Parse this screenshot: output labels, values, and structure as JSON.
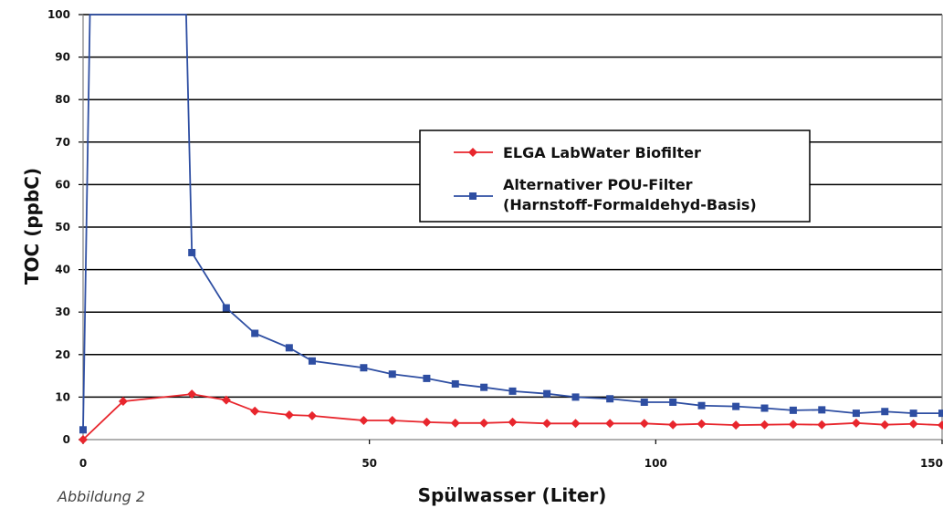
{
  "figure_caption": "Abbildung 2",
  "chart_data": {
    "type": "line",
    "title": "",
    "xlabel": "Spülwasser (Liter)",
    "ylabel": "TOC (ppbC)",
    "xlim": [
      0,
      150
    ],
    "ylim": [
      0,
      100
    ],
    "xticks": [
      0,
      50,
      100,
      150
    ],
    "yticks": [
      0,
      10,
      20,
      30,
      40,
      50,
      60,
      70,
      80,
      90,
      100
    ],
    "grid": "horizontal",
    "legend_position": "center-right",
    "series": [
      {
        "name": "ELGA LabWater Biofilter",
        "color": "#e8262d",
        "marker": "diamond",
        "x": [
          0,
          7,
          19,
          25,
          30,
          36,
          40,
          49,
          54,
          60,
          65,
          70,
          75,
          81,
          86,
          92,
          98,
          103,
          108,
          114,
          119,
          124,
          129,
          135,
          140,
          145,
          150
        ],
        "y": [
          0,
          9,
          10.7,
          9.3,
          6.7,
          5.8,
          5.6,
          4.5,
          4.5,
          4.1,
          3.9,
          3.9,
          4.1,
          3.8,
          3.8,
          3.8,
          3.8,
          3.5,
          3.7,
          3.4,
          3.5,
          3.6,
          3.5,
          3.9,
          3.5,
          3.7,
          3.4
        ]
      },
      {
        "name": "Alternativer POU-Filter (Harnstoff-Formaldehyd-Basis)",
        "legend_lines": [
          "Alternativer POU-Filter",
          "(Harnstoff-Formaldehyd-Basis)"
        ],
        "color": "#2e4ea2",
        "marker": "square",
        "x": [
          0,
          1.2,
          18,
          19,
          25,
          30,
          36,
          40,
          49,
          54,
          60,
          65,
          70,
          75,
          81,
          86,
          92,
          98,
          103,
          108,
          114,
          119,
          124,
          129,
          135,
          140,
          145,
          150
        ],
        "y": [
          2.3,
          100,
          100,
          44,
          31,
          25,
          21.6,
          18.5,
          16.9,
          15.4,
          14.4,
          13.1,
          12.3,
          11.4,
          10.8,
          10,
          9.6,
          8.8,
          8.8,
          8,
          7.8,
          7.4,
          6.9,
          7,
          6.2,
          6.6,
          6.2,
          6.2
        ]
      }
    ]
  }
}
